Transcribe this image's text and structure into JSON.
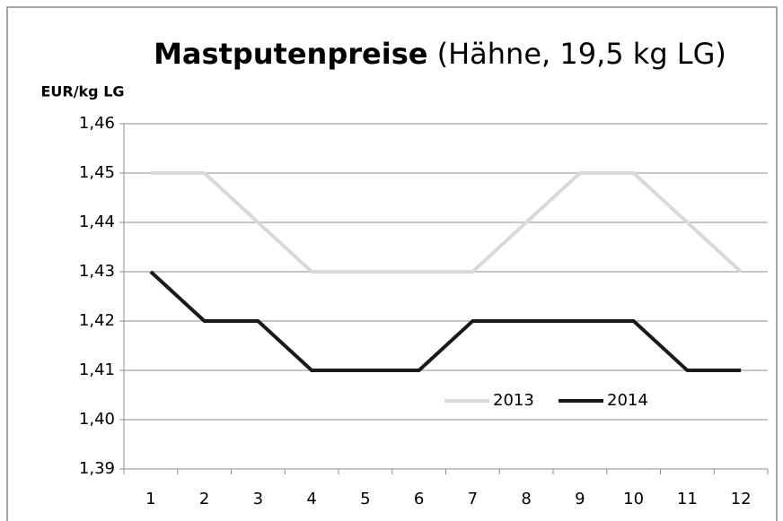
{
  "chart_data": {
    "type": "line",
    "title": "Mastputenpreise",
    "subtitle": "(Hähne, 19,5 kg LG)",
    "y_label": "EUR/kg LG",
    "categories": [
      "1",
      "2",
      "3",
      "4",
      "5",
      "6",
      "7",
      "8",
      "9",
      "10",
      "11",
      "12"
    ],
    "series": [
      {
        "name": "2013",
        "color": "#d9d9d9",
        "values": [
          1.45,
          1.45,
          1.44,
          1.43,
          1.43,
          1.43,
          1.43,
          1.44,
          1.45,
          1.45,
          1.44,
          1.43
        ]
      },
      {
        "name": "2014",
        "color": "#1a1a1a",
        "values": [
          1.43,
          1.42,
          1.42,
          1.41,
          1.41,
          1.41,
          1.42,
          1.42,
          1.42,
          1.42,
          1.41,
          1.41
        ]
      }
    ],
    "ylim": [
      1.39,
      1.46
    ],
    "yticks": [
      {
        "value": 1.39,
        "label": "1,39"
      },
      {
        "value": 1.4,
        "label": "1,40"
      },
      {
        "value": 1.41,
        "label": "1,41"
      },
      {
        "value": 1.42,
        "label": "1,42"
      },
      {
        "value": 1.43,
        "label": "1,43"
      },
      {
        "value": 1.44,
        "label": "1,44"
      },
      {
        "value": 1.45,
        "label": "1,45"
      },
      {
        "value": 1.46,
        "label": "1,46"
      }
    ],
    "grid": true,
    "legend": "bottom-right"
  }
}
